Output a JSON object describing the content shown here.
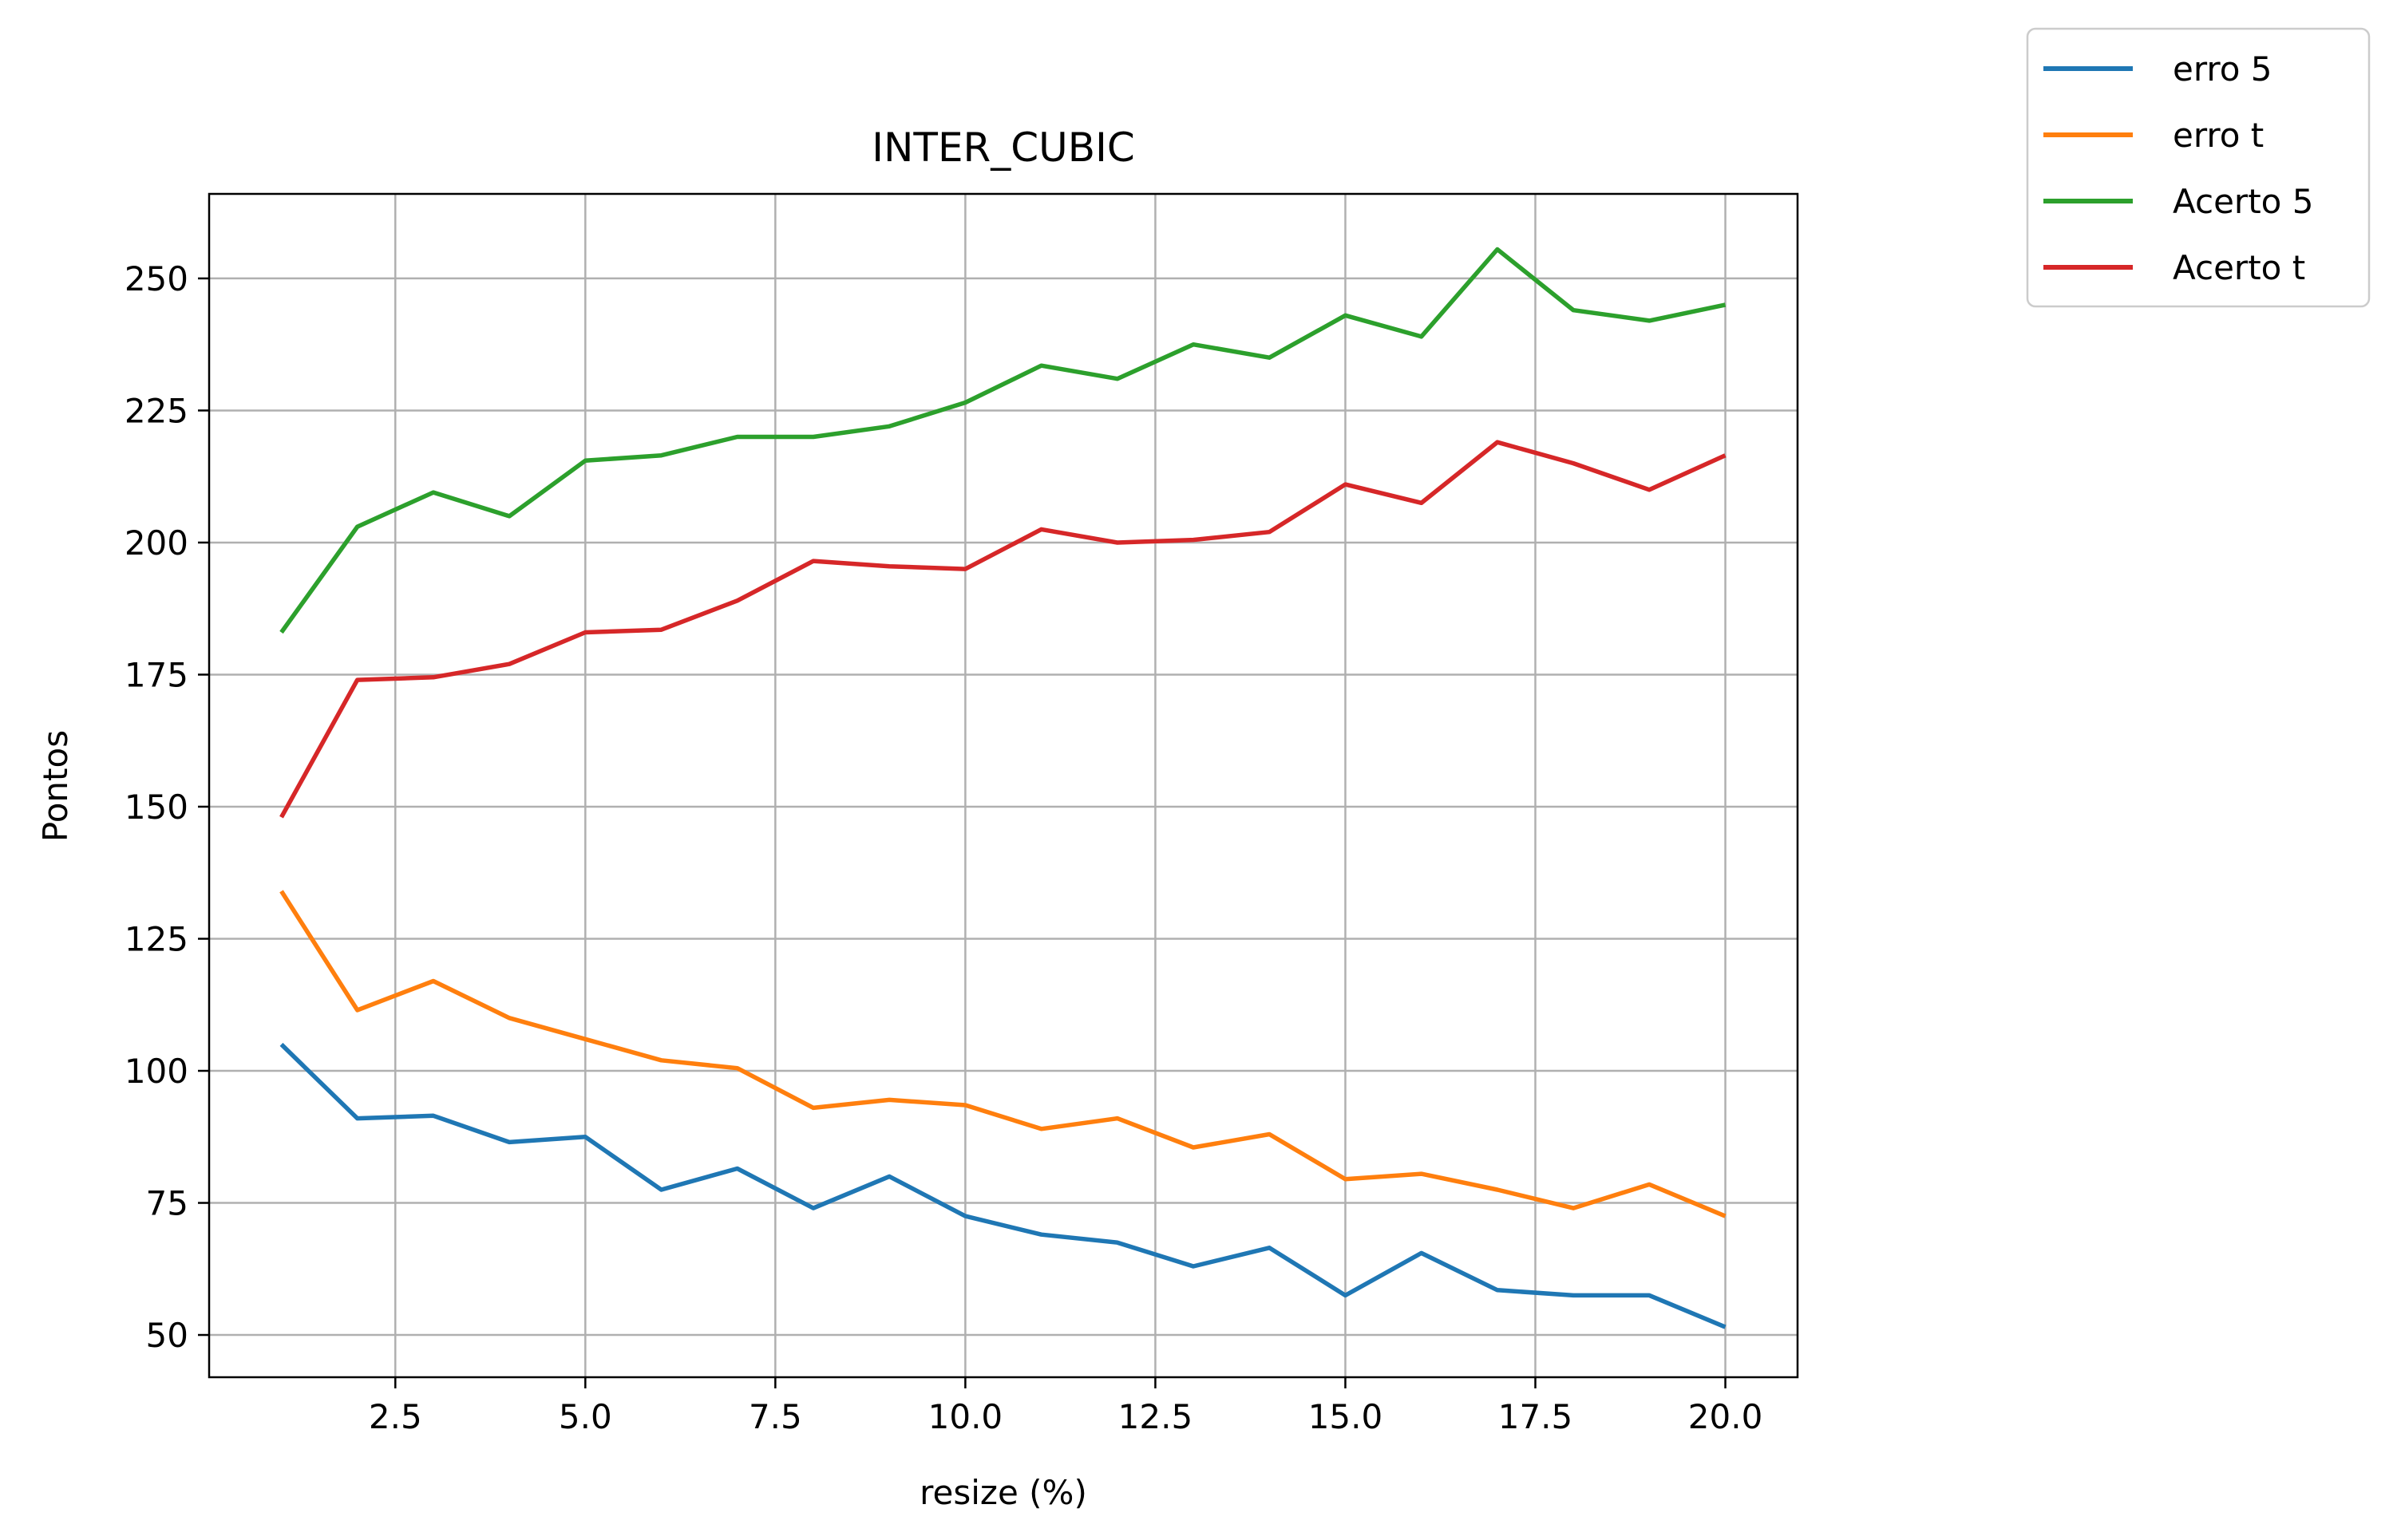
{
  "chart_data": {
    "type": "line",
    "title": "INTER_CUBIC",
    "xlabel": "resize (%)",
    "ylabel": "Pontos",
    "xlim": [
      0.05,
      20.95
    ],
    "ylim": [
      42,
      266
    ],
    "xticks": [
      2.5,
      5.0,
      7.5,
      10.0,
      12.5,
      15.0,
      17.5,
      20.0
    ],
    "xtick_labels": [
      "2.5",
      "5.0",
      "7.5",
      "10.0",
      "12.5",
      "15.0",
      "17.5",
      "20.0"
    ],
    "yticks": [
      50,
      75,
      100,
      125,
      150,
      175,
      200,
      225,
      250
    ],
    "ytick_labels": [
      "50",
      "75",
      "100",
      "125",
      "150",
      "175",
      "200",
      "225",
      "250"
    ],
    "grid": true,
    "legend_position": "outside-top-right",
    "x": [
      1,
      2,
      3,
      4,
      5,
      6,
      7,
      8,
      9,
      10,
      11,
      12,
      13,
      14,
      15,
      16,
      17,
      18,
      19,
      20
    ],
    "series": [
      {
        "name": "erro 5",
        "color": "#1f77b4",
        "values": [
          105,
          91,
          91.5,
          86.5,
          87.5,
          77.5,
          81.5,
          74,
          80,
          72.5,
          69,
          67.5,
          63,
          66.5,
          57.5,
          65.5,
          58.5,
          57.5,
          57.5,
          51.5
        ]
      },
      {
        "name": "erro t",
        "color": "#ff7f0e",
        "values": [
          134,
          111.5,
          117,
          110,
          106,
          102,
          100.5,
          93,
          94.5,
          93.5,
          89,
          91,
          85.5,
          88,
          79.5,
          80.5,
          77.5,
          74,
          78.5,
          72.5
        ]
      },
      {
        "name": "Acerto 5",
        "color": "#2ca02c",
        "values": [
          183,
          203,
          209.5,
          205,
          215.5,
          216.5,
          220,
          220,
          222,
          226.5,
          233.5,
          231,
          237.5,
          235,
          243,
          239,
          255.5,
          244,
          242,
          245
        ]
      },
      {
        "name": "Acerto t",
        "color": "#d62728",
        "values": [
          148,
          174,
          174.5,
          177,
          183,
          183.5,
          189,
          196.5,
          195.5,
          195,
          202.5,
          200,
          200.5,
          202,
          211,
          207.5,
          219,
          215,
          210,
          216.5
        ]
      }
    ]
  }
}
